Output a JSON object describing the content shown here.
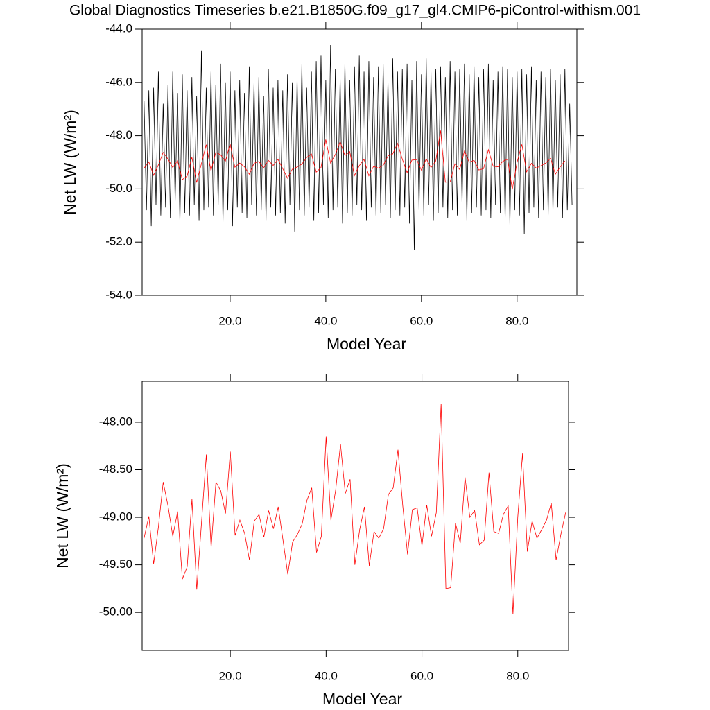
{
  "chart_data": [
    {
      "type": "line",
      "title": "Global Diagnostics Timeseries b.e21.B1850G.f09_g17_gl4.CMIP6-piControl-withism.001",
      "xlabel": "Model Year",
      "ylabel": "Net LW (W/m²)",
      "xlim": [
        1.6,
        92.5
      ],
      "ylim": [
        -54,
        -44
      ],
      "xticks": [
        {
          "value": 20,
          "label": "20.0"
        },
        {
          "value": 40,
          "label": "40.0"
        },
        {
          "value": 60,
          "label": "60.0"
        },
        {
          "value": 80,
          "label": "80.0"
        }
      ],
      "yticks": [
        {
          "value": -44,
          "label": "-44.0"
        },
        {
          "value": -46,
          "label": "-46.0"
        },
        {
          "value": -48,
          "label": "-48.0"
        },
        {
          "value": -50,
          "label": "-50.0"
        },
        {
          "value": -52,
          "label": "-52.0"
        },
        {
          "value": -54,
          "label": "-54.0"
        }
      ],
      "series": [
        {
          "color": "#000000",
          "x": [
            2,
            2.5,
            3,
            3.5,
            4,
            4.5,
            5,
            5.5,
            6,
            6.5,
            7,
            7.5,
            8,
            8.5,
            9,
            9.5,
            10,
            10.5,
            11,
            11.5,
            12,
            12.5,
            13,
            13.5,
            14,
            14.5,
            15,
            15.5,
            16,
            16.5,
            17,
            17.5,
            18,
            18.5,
            19,
            19.5,
            20,
            20.5,
            21,
            21.5,
            22,
            22.5,
            23,
            23.5,
            24,
            24.5,
            25,
            25.5,
            26,
            26.5,
            27,
            27.5,
            28,
            28.5,
            29,
            29.5,
            30,
            30.5,
            31,
            31.5,
            32,
            32.5,
            33,
            33.5,
            34,
            34.5,
            35,
            35.5,
            36,
            36.5,
            37,
            37.5,
            38,
            38.5,
            39,
            39.5,
            40,
            40.5,
            41,
            41.5,
            42,
            42.5,
            43,
            43.5,
            44,
            44.5,
            45,
            45.5,
            46,
            46.5,
            47,
            47.5,
            48,
            48.5,
            49,
            49.5,
            50,
            50.5,
            51,
            51.5,
            52,
            52.5,
            53,
            53.5,
            54,
            54.5,
            55,
            55.5,
            56,
            56.5,
            57,
            57.5,
            58,
            58.5,
            59,
            59.5,
            60,
            60.5,
            61,
            61.5,
            62,
            62.5,
            63,
            63.5,
            64,
            64.5,
            65,
            65.5,
            66,
            66.5,
            67,
            67.5,
            68,
            68.5,
            69,
            69.5,
            70,
            70.5,
            71,
            71.5,
            72,
            72.5,
            73,
            73.5,
            74,
            74.5,
            75,
            75.5,
            76,
            76.5,
            77,
            77.5,
            78,
            78.5,
            79,
            79.5,
            80,
            80.5,
            81,
            81.5,
            82,
            82.5,
            83,
            83.5,
            84,
            84.5,
            85,
            85.5,
            86,
            86.5,
            87,
            87.5,
            88,
            88.5,
            89,
            89.5,
            90,
            90.5,
            91,
            91.5
          ],
          "values": [
            -46.7,
            -50.8,
            -46.3,
            -51.4,
            -46.2,
            -50.6,
            -45.6,
            -51.0,
            -46.8,
            -50.7,
            -46.1,
            -51.1,
            -45.6,
            -50.5,
            -46.4,
            -51.3,
            -45.7,
            -50.9,
            -46.3,
            -51.0,
            -45.8,
            -50.6,
            -46.5,
            -51.2,
            -44.8,
            -50.8,
            -46.2,
            -50.7,
            -45.6,
            -51.0,
            -46.1,
            -50.6,
            -45.3,
            -51.3,
            -46.0,
            -50.8,
            -45.6,
            -51.4,
            -46.3,
            -50.7,
            -45.9,
            -50.9,
            -46.4,
            -51.1,
            -45.4,
            -50.6,
            -46.0,
            -51.0,
            -45.8,
            -50.8,
            -46.5,
            -51.2,
            -45.5,
            -50.7,
            -46.2,
            -51.0,
            -45.9,
            -50.9,
            -46.3,
            -51.3,
            -45.7,
            -50.6,
            -46.0,
            -51.6,
            -45.8,
            -50.8,
            -45.3,
            -51.0,
            -46.2,
            -50.7,
            -45.6,
            -51.2,
            -45.2,
            -50.9,
            -45.0,
            -50.6,
            -45.9,
            -51.1,
            -44.6,
            -50.8,
            -45.5,
            -50.7,
            -45.8,
            -51.3,
            -45.2,
            -50.9,
            -45.9,
            -51.0,
            -45.4,
            -50.6,
            -45.0,
            -50.8,
            -45.6,
            -51.2,
            -45.2,
            -50.7,
            -45.8,
            -51.0,
            -45.4,
            -50.9,
            -45.3,
            -50.6,
            -45.9,
            -51.1,
            -45.1,
            -50.8,
            -45.6,
            -51.0,
            -45.5,
            -50.7,
            -45.3,
            -51.3,
            -45.9,
            -52.3,
            -45.2,
            -50.8,
            -45.7,
            -51.0,
            -45.1,
            -50.6,
            -45.6,
            -51.2,
            -45.5,
            -50.9,
            -45.4,
            -50.7,
            -45.8,
            -51.1,
            -45.2,
            -50.8,
            -45.6,
            -51.0,
            -45.5,
            -50.6,
            -45.3,
            -51.2,
            -45.7,
            -50.9,
            -45.4,
            -50.7,
            -45.8,
            -51.0,
            -45.5,
            -50.8,
            -45.3,
            -51.1,
            -45.9,
            -50.6,
            -45.6,
            -50.9,
            -45.4,
            -51.2,
            -45.5,
            -51.4,
            -45.8,
            -50.8,
            -45.6,
            -51.0,
            -45.5,
            -51.7,
            -45.7,
            -50.9,
            -45.4,
            -50.7,
            -45.9,
            -51.1,
            -45.6,
            -50.8,
            -45.8,
            -51.0,
            -45.5,
            -50.9,
            -45.9,
            -50.7,
            -45.7,
            -51.1,
            -45.5,
            -50.8,
            -46.8,
            -50.6
          ]
        },
        {
          "color": "#ff0000",
          "x": [
            2,
            3,
            4,
            5,
            6,
            7,
            8,
            9,
            10,
            11,
            12,
            13,
            14,
            15,
            16,
            17,
            18,
            19,
            20,
            21,
            22,
            23,
            24,
            25,
            26,
            27,
            28,
            29,
            30,
            31,
            32,
            33,
            34,
            35,
            36,
            37,
            38,
            39,
            40,
            41,
            42,
            43,
            44,
            45,
            46,
            47,
            48,
            49,
            50,
            51,
            52,
            53,
            54,
            55,
            56,
            57,
            58,
            59,
            60,
            61,
            62,
            63,
            64,
            65,
            66,
            67,
            68,
            69,
            70,
            71,
            72,
            73,
            74,
            75,
            76,
            77,
            78,
            79,
            80,
            81,
            82,
            83,
            84,
            85,
            86,
            87,
            88,
            89,
            90
          ],
          "values": [
            -49.22,
            -48.99,
            -49.49,
            -49.1,
            -48.63,
            -48.88,
            -49.2,
            -48.94,
            -49.65,
            -49.52,
            -48.81,
            -49.76,
            -49.05,
            -48.34,
            -49.32,
            -48.63,
            -48.72,
            -48.96,
            -48.31,
            -49.19,
            -49.03,
            -49.17,
            -49.45,
            -49.04,
            -48.97,
            -49.21,
            -48.93,
            -49.12,
            -48.89,
            -49.24,
            -49.6,
            -49.26,
            -49.18,
            -49.07,
            -48.82,
            -48.69,
            -49.37,
            -49.2,
            -48.15,
            -49.03,
            -48.71,
            -48.23,
            -48.75,
            -48.6,
            -49.5,
            -49.13,
            -48.89,
            -49.51,
            -49.15,
            -49.22,
            -49.12,
            -48.76,
            -48.69,
            -48.29,
            -48.88,
            -49.39,
            -48.92,
            -48.9,
            -49.3,
            -48.87,
            -49.2,
            -48.95,
            -47.81,
            -49.75,
            -49.74,
            -49.06,
            -49.27,
            -48.58,
            -49.0,
            -48.93,
            -49.29,
            -49.24,
            -48.53,
            -49.15,
            -49.17,
            -48.97,
            -48.88,
            -50.02,
            -49.0,
            -48.33,
            -49.36,
            -49.04,
            -49.22,
            -49.13,
            -49.03,
            -48.85,
            -49.45,
            -49.18,
            -48.95
          ]
        }
      ]
    },
    {
      "type": "line",
      "xlabel": "Model Year",
      "ylabel": "Net LW (W/m²)",
      "xlim": [
        1.6,
        90.6
      ],
      "ylim": [
        -50.4,
        -47.57
      ],
      "xticks": [
        {
          "value": 20,
          "label": "20.0"
        },
        {
          "value": 40,
          "label": "40.0"
        },
        {
          "value": 60,
          "label": "60.0"
        },
        {
          "value": 80,
          "label": "80.0"
        }
      ],
      "yticks": [
        {
          "value": -48,
          "label": "-48.00"
        },
        {
          "value": -48.5,
          "label": "-48.50"
        },
        {
          "value": -49,
          "label": "-49.00"
        },
        {
          "value": -49.5,
          "label": "-49.50"
        },
        {
          "value": -50,
          "label": "-50.00"
        }
      ],
      "series": [
        {
          "color": "#ff0000",
          "x": [
            2,
            3,
            4,
            5,
            6,
            7,
            8,
            9,
            10,
            11,
            12,
            13,
            14,
            15,
            16,
            17,
            18,
            19,
            20,
            21,
            22,
            23,
            24,
            25,
            26,
            27,
            28,
            29,
            30,
            31,
            32,
            33,
            34,
            35,
            36,
            37,
            38,
            39,
            40,
            41,
            42,
            43,
            44,
            45,
            46,
            47,
            48,
            49,
            50,
            51,
            52,
            53,
            54,
            55,
            56,
            57,
            58,
            59,
            60,
            61,
            62,
            63,
            64,
            65,
            66,
            67,
            68,
            69,
            70,
            71,
            72,
            73,
            74,
            75,
            76,
            77,
            78,
            79,
            80,
            81,
            82,
            83,
            84,
            85,
            86,
            87,
            88,
            89,
            90
          ],
          "values": [
            -49.22,
            -48.99,
            -49.49,
            -49.1,
            -48.63,
            -48.88,
            -49.2,
            -48.94,
            -49.65,
            -49.52,
            -48.81,
            -49.76,
            -49.05,
            -48.34,
            -49.32,
            -48.63,
            -48.72,
            -48.96,
            -48.31,
            -49.19,
            -49.03,
            -49.17,
            -49.45,
            -49.04,
            -48.97,
            -49.21,
            -48.93,
            -49.12,
            -48.89,
            -49.24,
            -49.6,
            -49.26,
            -49.18,
            -49.07,
            -48.82,
            -48.69,
            -49.37,
            -49.2,
            -48.15,
            -49.03,
            -48.71,
            -48.23,
            -48.75,
            -48.6,
            -49.5,
            -49.13,
            -48.89,
            -49.51,
            -49.15,
            -49.22,
            -49.12,
            -48.76,
            -48.69,
            -48.29,
            -48.88,
            -49.39,
            -48.92,
            -48.9,
            -49.3,
            -48.87,
            -49.2,
            -48.95,
            -47.81,
            -49.75,
            -49.74,
            -49.06,
            -49.27,
            -48.58,
            -49.0,
            -48.93,
            -49.29,
            -49.24,
            -48.53,
            -49.15,
            -49.17,
            -48.97,
            -48.88,
            -50.02,
            -49.0,
            -48.33,
            -49.36,
            -49.04,
            -49.22,
            -49.13,
            -49.03,
            -48.85,
            -49.45,
            -49.18,
            -48.95
          ]
        }
      ]
    }
  ]
}
